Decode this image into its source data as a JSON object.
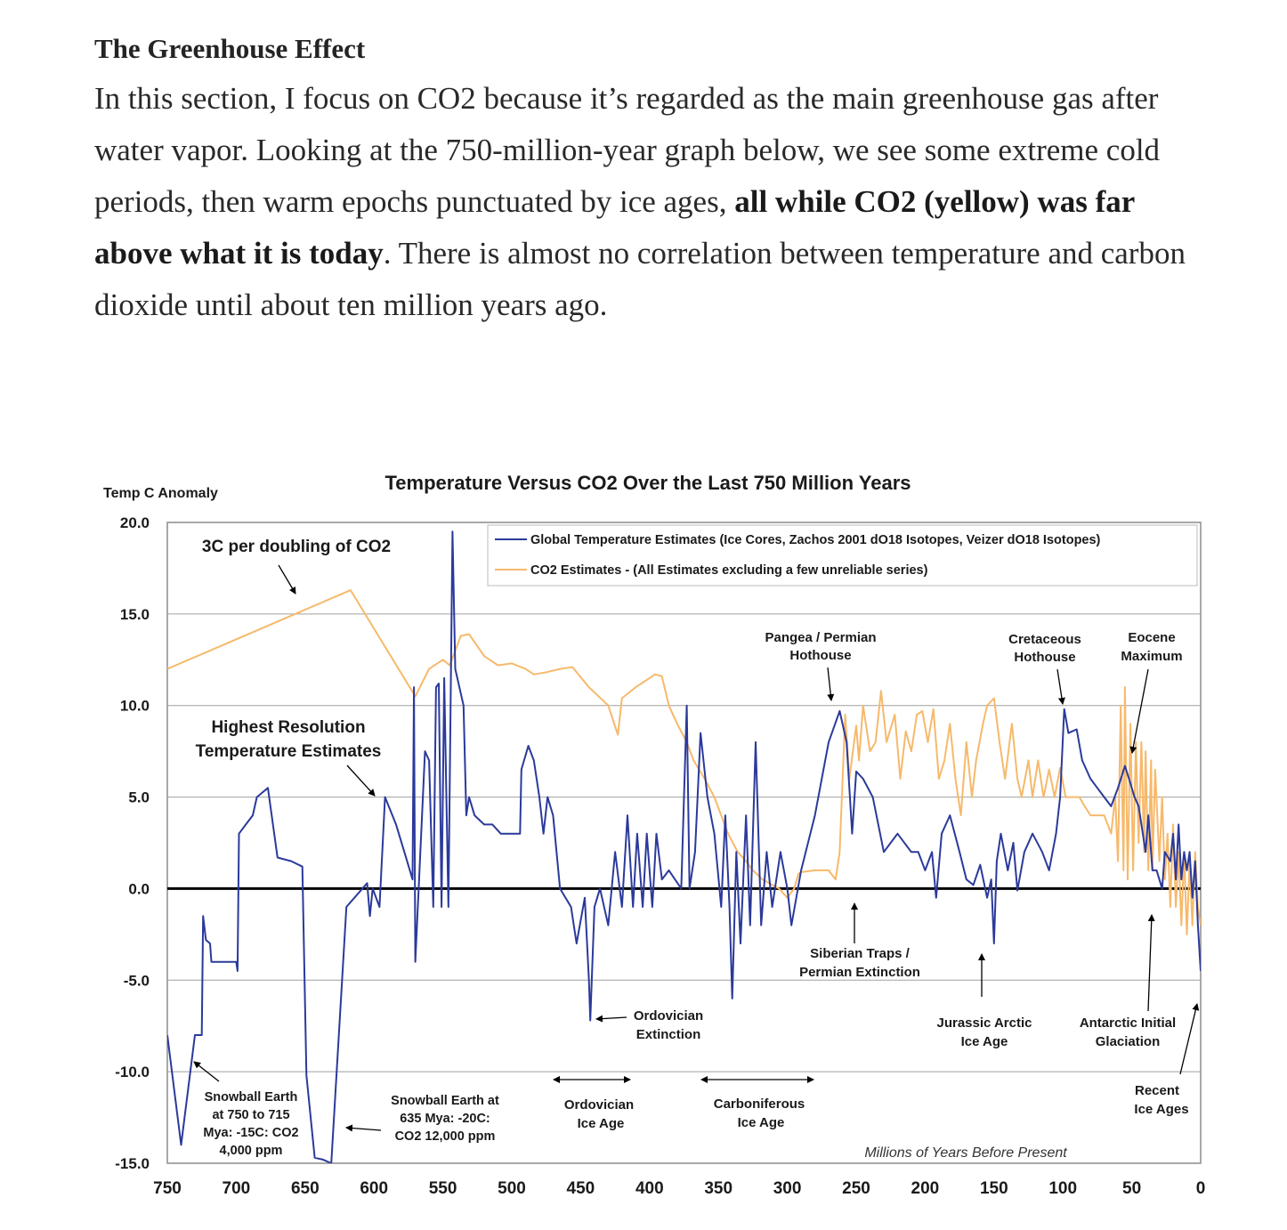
{
  "article": {
    "heading": "The Greenhouse Effect",
    "p_before": "In this section, I focus on CO2 because it’s regarded as the main greenhouse gas after water vapor. Looking at the 750-million-year graph below, we see some extreme cold periods, then warm epochs punctuated by ice ages, ",
    "p_bold": "all while CO2 (yellow) was far above what it is today",
    "p_after": ". There is almost no correlation between temperature and carbon dioxide until about ten million years ago."
  },
  "chart_data": {
    "type": "line",
    "title": "Temperature Versus CO2 Over the Last 750 Million Years",
    "ylabel": "Temp C Anomaly",
    "xlabel": "Millions of Years Before Present",
    "xlim": [
      750,
      0
    ],
    "ylim": [
      -15,
      20
    ],
    "x_ticks": [
      "750",
      "700",
      "650",
      "600",
      "550",
      "500",
      "450",
      "400",
      "350",
      "300",
      "250",
      "200",
      "150",
      "100",
      "50",
      "0"
    ],
    "y_ticks": [
      "20.0",
      "15.0",
      "10.0",
      "5.0",
      "0.0",
      "-5.0",
      "-10.0",
      "-15.0"
    ],
    "grid": true,
    "legend_position": "top-right",
    "colors": {
      "temperature": "#2b3a9a",
      "co2": "#f6b96b",
      "zero_line": "#000000"
    },
    "series": [
      {
        "name": "Global Temperature Estimates (Ice Cores, Zachos 2001 dO18 Isotopes, Veizer dO18 Isotopes)",
        "color": "#2b3a9a",
        "points": [
          [
            750,
            -8
          ],
          [
            740,
            -14
          ],
          [
            730,
            -8
          ],
          [
            725,
            -8
          ],
          [
            724,
            -1.5
          ],
          [
            722,
            -2.8
          ],
          [
            719,
            -3
          ],
          [
            718,
            -4
          ],
          [
            700,
            -4
          ],
          [
            699,
            -4.5
          ],
          [
            698,
            3
          ],
          [
            693,
            3.5
          ],
          [
            688,
            4
          ],
          [
            685,
            5
          ],
          [
            677,
            5.5
          ],
          [
            670,
            1.7
          ],
          [
            660,
            1.5
          ],
          [
            652,
            1.2
          ],
          [
            649,
            -10.2
          ],
          [
            643,
            -14.7
          ],
          [
            637,
            -14.8
          ],
          [
            631,
            -15
          ],
          [
            620,
            -1
          ],
          [
            605,
            0.3
          ],
          [
            603,
            -1.5
          ],
          [
            601,
            0
          ],
          [
            596,
            -1
          ],
          [
            592,
            5
          ],
          [
            584,
            3.5
          ],
          [
            576,
            1.5
          ],
          [
            572,
            0.5
          ],
          [
            571,
            11
          ],
          [
            570,
            -4
          ],
          [
            563,
            7.5
          ],
          [
            560,
            7
          ],
          [
            557,
            -1
          ],
          [
            555,
            11
          ],
          [
            553,
            11.2
          ],
          [
            551,
            -1
          ],
          [
            549,
            11.5
          ],
          [
            546,
            -1
          ],
          [
            543,
            19.5
          ],
          [
            541,
            12
          ],
          [
            535,
            10
          ],
          [
            533,
            4
          ],
          [
            531,
            5
          ],
          [
            527,
            4
          ],
          [
            520,
            3.5
          ],
          [
            514,
            3.5
          ],
          [
            508,
            3
          ],
          [
            494,
            3
          ],
          [
            493,
            6.5
          ],
          [
            488,
            7.8
          ],
          [
            484,
            7
          ],
          [
            480,
            5
          ],
          [
            477,
            3
          ],
          [
            474,
            5
          ],
          [
            470,
            4
          ],
          [
            465,
            0
          ],
          [
            457,
            -1
          ],
          [
            453,
            -3
          ],
          [
            447,
            -0.5
          ],
          [
            444,
            -5
          ],
          [
            443,
            -7.2
          ],
          [
            440,
            -1
          ],
          [
            436,
            0
          ],
          [
            430,
            -2
          ],
          [
            425,
            2
          ],
          [
            420,
            -1
          ],
          [
            416,
            4
          ],
          [
            412,
            -1
          ],
          [
            409,
            3
          ],
          [
            405,
            -1
          ],
          [
            402,
            3
          ],
          [
            398,
            -1
          ],
          [
            395,
            3
          ],
          [
            391,
            0.5
          ],
          [
            386,
            1
          ],
          [
            377,
            0
          ],
          [
            373,
            10
          ],
          [
            371,
            0
          ],
          [
            367,
            2
          ],
          [
            363,
            8.5
          ],
          [
            358,
            5
          ],
          [
            353,
            3
          ],
          [
            348,
            -1
          ],
          [
            345,
            4
          ],
          [
            342,
            -1
          ],
          [
            340,
            -6
          ],
          [
            337,
            2
          ],
          [
            334,
            -3
          ],
          [
            330,
            4
          ],
          [
            327,
            -2
          ],
          [
            323,
            8
          ],
          [
            319,
            -2
          ],
          [
            315,
            2
          ],
          [
            311,
            -1
          ],
          [
            305,
            2
          ],
          [
            300,
            0
          ],
          [
            297,
            -2
          ],
          [
            290,
            1
          ],
          [
            280,
            4
          ],
          [
            270,
            8
          ],
          [
            262,
            9.7
          ],
          [
            257,
            8
          ],
          [
            253,
            3
          ],
          [
            250,
            6.4
          ],
          [
            245,
            6
          ],
          [
            238,
            5
          ],
          [
            230,
            2
          ],
          [
            225,
            2.5
          ],
          [
            220,
            3
          ],
          [
            210,
            2
          ],
          [
            205,
            2
          ],
          [
            200,
            1
          ],
          [
            195,
            2
          ],
          [
            192,
            -0.5
          ],
          [
            188,
            3
          ],
          [
            182,
            4
          ],
          [
            175,
            2
          ],
          [
            170,
            0.5
          ],
          [
            165,
            0.2
          ],
          [
            160,
            1.3
          ],
          [
            155,
            -0.5
          ],
          [
            152,
            0.5
          ],
          [
            150,
            -3
          ],
          [
            148,
            1.5
          ],
          [
            145,
            3
          ],
          [
            140,
            1
          ],
          [
            136,
            2.5
          ],
          [
            133,
            -0.1
          ],
          [
            128,
            2
          ],
          [
            122,
            3
          ],
          [
            115,
            2
          ],
          [
            110,
            1
          ],
          [
            105,
            3
          ],
          [
            102,
            5
          ],
          [
            99,
            9.8
          ],
          [
            96,
            8.5
          ],
          [
            90,
            8.7
          ],
          [
            86,
            7
          ],
          [
            80,
            6
          ],
          [
            75,
            5.5
          ],
          [
            70,
            5
          ],
          [
            65,
            4.5
          ],
          [
            60,
            5.5
          ],
          [
            55,
            6.7
          ],
          [
            52,
            6
          ],
          [
            48,
            5
          ],
          [
            45,
            4.5
          ],
          [
            40,
            2
          ],
          [
            38,
            4
          ],
          [
            35,
            1
          ],
          [
            32,
            1
          ],
          [
            28,
            0
          ],
          [
            26,
            2
          ],
          [
            22,
            1.5
          ],
          [
            20,
            3
          ],
          [
            18,
            0.5
          ],
          [
            16,
            3.5
          ],
          [
            14,
            0.5
          ],
          [
            12,
            2
          ],
          [
            10,
            1
          ],
          [
            8,
            2
          ],
          [
            6,
            -0.5
          ],
          [
            4,
            1.5
          ],
          [
            2,
            -2
          ],
          [
            0,
            -4.5
          ]
        ]
      },
      {
        "name": "CO2 Estimates - (All Estimates excluding a few unreliable series)",
        "color": "#f6b96b",
        "points": [
          [
            750,
            12
          ],
          [
            617,
            16.3
          ],
          [
            570,
            10.5
          ],
          [
            560,
            12
          ],
          [
            550,
            12.5
          ],
          [
            545,
            12.2
          ],
          [
            537,
            13.8
          ],
          [
            531,
            13.9
          ],
          [
            520,
            12.7
          ],
          [
            510,
            12.2
          ],
          [
            500,
            12.3
          ],
          [
            490,
            12
          ],
          [
            484,
            11.7
          ],
          [
            476,
            11.8
          ],
          [
            465,
            12
          ],
          [
            456,
            12.1
          ],
          [
            444,
            11
          ],
          [
            430,
            10
          ],
          [
            423,
            8.4
          ],
          [
            420,
            10.4
          ],
          [
            410,
            11
          ],
          [
            400,
            11.5
          ],
          [
            396,
            11.7
          ],
          [
            391,
            11.6
          ],
          [
            386,
            10
          ],
          [
            380,
            9
          ],
          [
            373,
            8
          ],
          [
            368,
            7
          ],
          [
            360,
            6
          ],
          [
            353,
            5
          ],
          [
            343,
            3
          ],
          [
            336,
            2
          ],
          [
            330,
            1.5
          ],
          [
            325,
            1
          ],
          [
            318,
            0.5
          ],
          [
            306,
            0
          ],
          [
            300,
            -0.5
          ],
          [
            295,
            0
          ],
          [
            292,
            0.8
          ],
          [
            290,
            0.9
          ],
          [
            280,
            1
          ],
          [
            270,
            1
          ],
          [
            265,
            0.5
          ],
          [
            262,
            2
          ],
          [
            258,
            9.5
          ],
          [
            255,
            6
          ],
          [
            250,
            8.9
          ],
          [
            248,
            7
          ],
          [
            245,
            10
          ],
          [
            240,
            7.5
          ],
          [
            236,
            8
          ],
          [
            232,
            10.8
          ],
          [
            228,
            8
          ],
          [
            222,
            9.5
          ],
          [
            218,
            6
          ],
          [
            214,
            8.6
          ],
          [
            210,
            7.5
          ],
          [
            206,
            9.5
          ],
          [
            202,
            9.7
          ],
          [
            198,
            8
          ],
          [
            194,
            9.8
          ],
          [
            190,
            6
          ],
          [
            186,
            7
          ],
          [
            182,
            9
          ],
          [
            178,
            6
          ],
          [
            174,
            4
          ],
          [
            170,
            8
          ],
          [
            166,
            5
          ],
          [
            163,
            7
          ],
          [
            158,
            9
          ],
          [
            155,
            10
          ],
          [
            150,
            10.4
          ],
          [
            146,
            8
          ],
          [
            142,
            6
          ],
          [
            137,
            9
          ],
          [
            133,
            6
          ],
          [
            130,
            5
          ],
          [
            125,
            7
          ],
          [
            122,
            5
          ],
          [
            118,
            7
          ],
          [
            114,
            5
          ],
          [
            110,
            6.5
          ],
          [
            106,
            5
          ],
          [
            102,
            6.6
          ],
          [
            98,
            5
          ],
          [
            92,
            5
          ],
          [
            88,
            5
          ],
          [
            85,
            4.6
          ],
          [
            80,
            4
          ],
          [
            75,
            4
          ],
          [
            70,
            4
          ],
          [
            65,
            3
          ],
          [
            62,
            5
          ],
          [
            60,
            1.5
          ],
          [
            58,
            10
          ],
          [
            56,
            1
          ],
          [
            55,
            11
          ],
          [
            53,
            0.5
          ],
          [
            51,
            9
          ],
          [
            49,
            1
          ],
          [
            47,
            8
          ],
          [
            45,
            2.5
          ],
          [
            43,
            8
          ],
          [
            41,
            2
          ],
          [
            40,
            7.5
          ],
          [
            38,
            1
          ],
          [
            36,
            7
          ],
          [
            35,
            1
          ],
          [
            33,
            6.5
          ],
          [
            30,
            1.5
          ],
          [
            28,
            5
          ],
          [
            26,
            0.5
          ],
          [
            24,
            3
          ],
          [
            22,
            -1
          ],
          [
            20,
            3.5
          ],
          [
            18,
            -1
          ],
          [
            16,
            2
          ],
          [
            14,
            -2
          ],
          [
            12,
            2
          ],
          [
            10,
            -2.5
          ],
          [
            8,
            1.5
          ],
          [
            6,
            -2
          ],
          [
            4,
            2
          ],
          [
            2,
            -1
          ],
          [
            0,
            -2
          ]
        ]
      }
    ],
    "annotations": {
      "doubling": "3C per doubling of CO2",
      "highest_res_1": "Highest Resolution",
      "highest_res_2": "Temperature Estimates",
      "pangea_1": "Pangea / Permian",
      "pangea_2": "Hothouse",
      "cretaceous_1": "Cretaceous",
      "cretaceous_2": "Hothouse",
      "eocene_1": "Eocene",
      "eocene_2": "Maximum",
      "siberian_1": "Siberian Traps /",
      "siberian_2": "Permian Extinction",
      "ord_ext_1": "Ordovician",
      "ord_ext_2": "Extinction",
      "jurassic_1": "Jurassic Arctic",
      "jurassic_2": "Ice Age",
      "antarctic_1": "Antarctic Initial",
      "antarctic_2": "Glaciation",
      "recent_1": "Recent",
      "recent_2": "Ice Ages",
      "snow1_1": "Snowball Earth",
      "snow1_2": "at 750 to 715",
      "snow1_3": "Mya: -15C: CO2",
      "snow1_4": "4,000 ppm",
      "snow2_1": "Snowball Earth at",
      "snow2_2": "635 Mya: -20C:",
      "snow2_3": "CO2 12,000 ppm",
      "ord_ice_1": "Ordovician",
      "ord_ice_2": "Ice Age",
      "carb_1": "Carboniferous",
      "carb_2": "Ice Age"
    }
  }
}
